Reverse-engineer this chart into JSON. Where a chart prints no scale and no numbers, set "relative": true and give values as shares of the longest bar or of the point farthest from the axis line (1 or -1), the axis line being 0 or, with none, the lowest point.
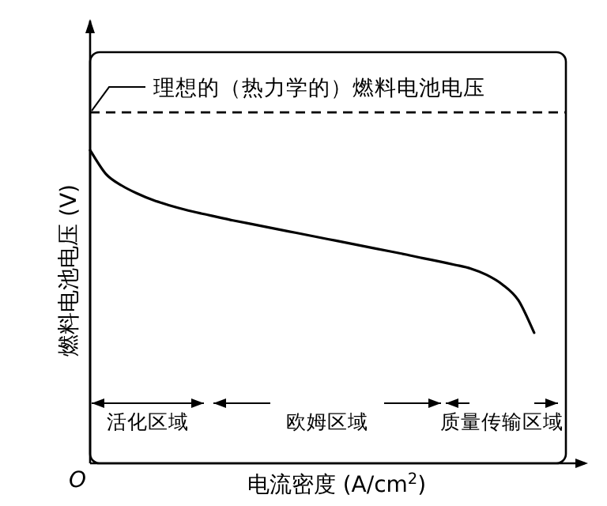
{
  "chart_data": {
    "type": "line",
    "relative": true,
    "xlabel": "电流密度 (A/cm$^{2}$)",
    "ylabel": "燃料电池电压 (V)",
    "categories": [
      null,
      null,
      null,
      null,
      null,
      null,
      null,
      null,
      null,
      null,
      null,
      null,
      null,
      null,
      null,
      null,
      null,
      null,
      null,
      null,
      null,
      null,
      null,
      null,
      null,
      null,
      null,
      null,
      null,
      null,
      null
    ],
    "series": [
      {
        "color": "#000000",
        "values": [
          1.0,
          0.924,
          0.887,
          0.861,
          0.84,
          0.824,
          0.81,
          0.798,
          0.787,
          0.776,
          0.766,
          0.756,
          0.746,
          0.736,
          0.726,
          0.716,
          0.706,
          0.696,
          0.686,
          0.676,
          0.666,
          0.655,
          0.645,
          0.634,
          0.622,
          0.602,
          0.571,
          0.521,
          0.417,
          null,
          null
        ]
      }
    ],
    "line_style": "solid",
    "marker": "none",
    "ref_lines": [
      {
        "axis": "y",
        "value": 1.121,
        "label": "理想的（热力学的）燃料电池电压",
        "line_style": "dashed",
        "color": "#000000"
      }
    ],
    "annotations": [
      "O",
      "活化区域",
      "欧姆区域",
      "质量传输区域"
    ]
  }
}
